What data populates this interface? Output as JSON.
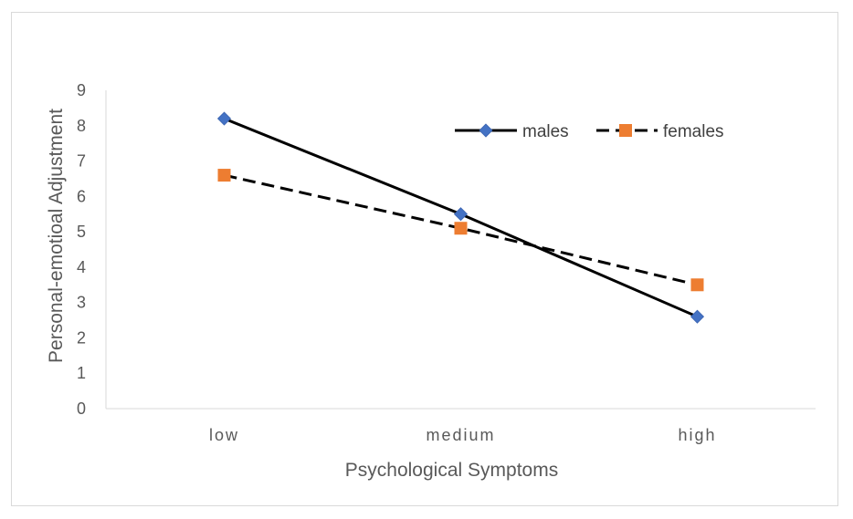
{
  "chart_data": {
    "type": "line",
    "categories": [
      "low",
      "medium",
      "high"
    ],
    "series": [
      {
        "name": "males",
        "values": [
          8.2,
          5.5,
          2.6
        ],
        "color": "#000000",
        "marker": "diamond",
        "marker_color": "#4472c4",
        "line_style": "solid"
      },
      {
        "name": "females",
        "values": [
          6.6,
          5.1,
          3.5
        ],
        "color": "#000000",
        "marker": "square",
        "marker_color": "#ed7d31",
        "line_style": "dashed"
      }
    ],
    "xlabel": "Psychological Symptoms",
    "ylabel": "Personal-emotioal Adjustment",
    "ylim": [
      0,
      9
    ],
    "yticks": [
      0,
      1,
      2,
      3,
      4,
      5,
      6,
      7,
      8,
      9
    ],
    "grid": false,
    "legend_position": "top-right",
    "axis_color": "#d9d9d9",
    "text_color": "#595959"
  }
}
